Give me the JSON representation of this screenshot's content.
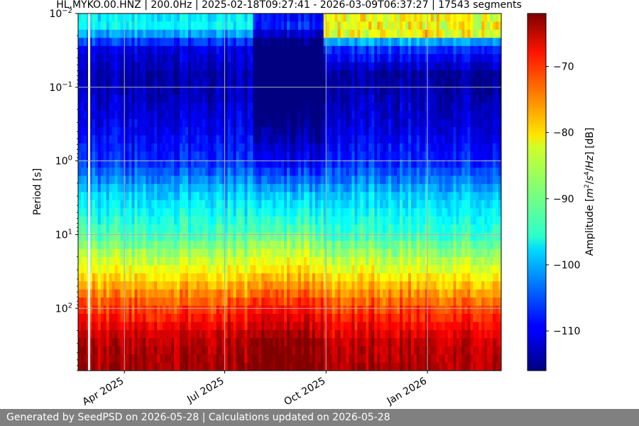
{
  "chart_data": {
    "type": "heatmap",
    "title": "HL.MYKO.00.HNZ | 200.0Hz | 2025-02-18T09:27:41 - 2026-03-09T06:37:27 | 17543 segments",
    "xlabel": "",
    "ylabel": "Period [s]",
    "y_scale": "log",
    "y_inverted": true,
    "y_range": [
      0.01,
      700
    ],
    "x_range": [
      "2025-02-18",
      "2026-03-09"
    ],
    "x_ticks": [
      {
        "date": "2025-04-01",
        "label": "Apr 2025"
      },
      {
        "date": "2025-07-01",
        "label": "Jul 2025"
      },
      {
        "date": "2025-10-01",
        "label": "Oct 2025"
      },
      {
        "date": "2026-01-01",
        "label": "Jan 2026"
      }
    ],
    "y_ticks": [
      {
        "value": 0.01,
        "base": "10",
        "exp": "−2"
      },
      {
        "value": 0.1,
        "base": "10",
        "exp": "−1"
      },
      {
        "value": 1,
        "base": "10",
        "exp": "0"
      },
      {
        "value": 10,
        "base": "10",
        "exp": "1"
      },
      {
        "value": 100,
        "base": "10",
        "exp": "2"
      }
    ],
    "grid": true,
    "colorbar": {
      "label": "Amplitude [m²/s⁴/Hz] [dB]",
      "label_parts": {
        "a": "Amplitude [",
        "m": "m",
        "e1": "2",
        "slash1": "/",
        "s": "s",
        "e2": "4",
        "slash2": "/",
        "hz": "Hz",
        "b": "] [dB]"
      },
      "range": [
        -116,
        -62
      ],
      "ticks": [
        -70,
        -80,
        -90,
        -100,
        -110
      ],
      "tick_labels": [
        "−70",
        "−80",
        "−90",
        "−100",
        "−110"
      ],
      "colormap": "jet"
    },
    "gaps": [
      [
        "2025-02-27",
        "2025-03-01"
      ]
    ],
    "regimes": [
      {
        "from": "2025-02-18",
        "to": "2025-07-28",
        "short_period_db": -97,
        "long_period_db": -65
      },
      {
        "from": "2025-07-28",
        "to": "2025-09-28",
        "short_period_db": -116,
        "long_period_db": -63
      },
      {
        "from": "2025-09-28",
        "to": "2026-03-09",
        "short_period_db": -82,
        "long_period_db": -65
      }
    ],
    "spectrum_by_period": [
      {
        "period": 0.01,
        "db": -97
      },
      {
        "period": 0.015,
        "db": -96
      },
      {
        "period": 0.03,
        "db": -111
      },
      {
        "period": 0.07,
        "db": -114
      },
      {
        "period": 0.3,
        "db": -111
      },
      {
        "period": 1,
        "db": -107
      },
      {
        "period": 3,
        "db": -98
      },
      {
        "period": 10,
        "db": -92
      },
      {
        "period": 30,
        "db": -83
      },
      {
        "period": 100,
        "db": -72
      },
      {
        "period": 300,
        "db": -65
      },
      {
        "period": 700,
        "db": -64
      }
    ]
  },
  "footer": {
    "text": "Generated by SeedPSD on 2026-05-28 | Calculations updated on 2026-05-28"
  },
  "colors": {
    "footer_bg": "#808080",
    "grid": "#b0b0b0"
  }
}
